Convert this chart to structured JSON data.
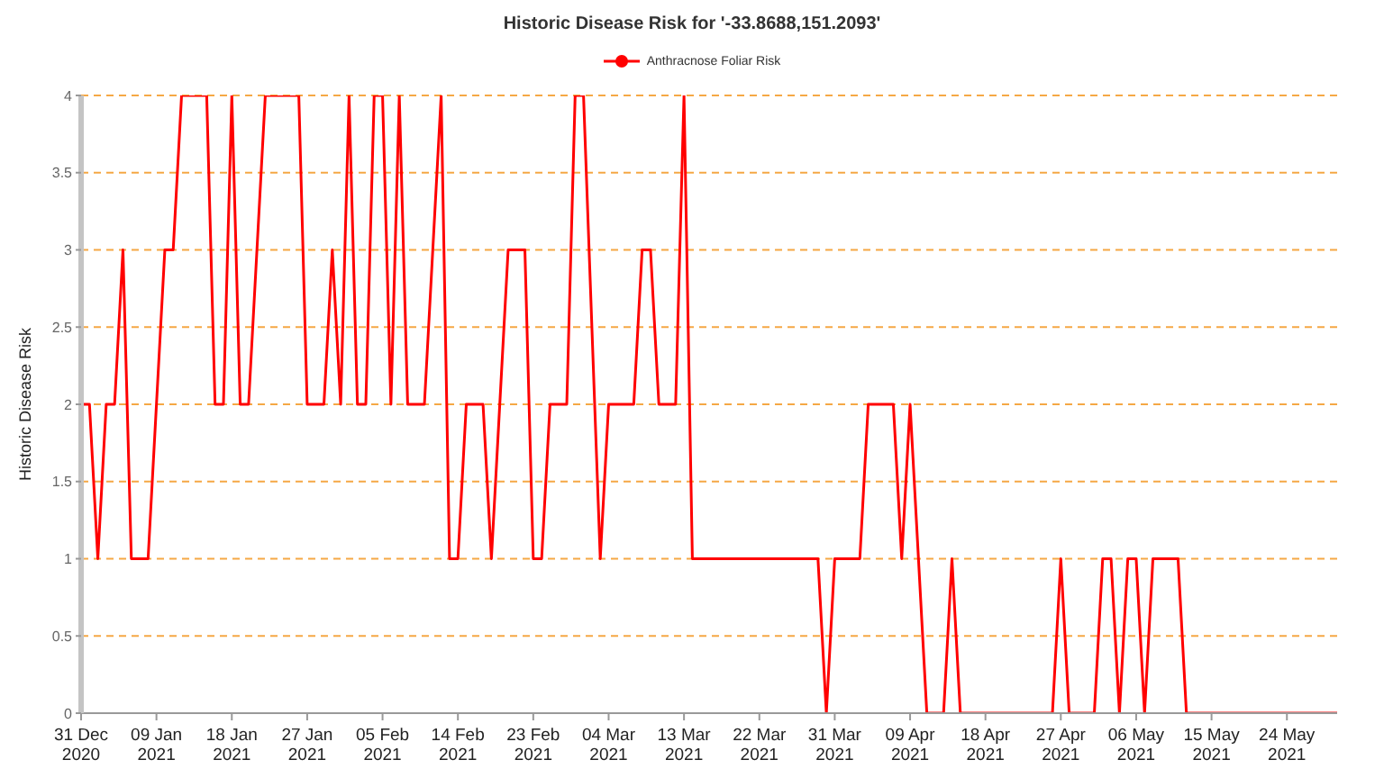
{
  "chart_data": {
    "type": "line",
    "title": "Historic Disease Risk for '-33.8688,151.2093'",
    "ylabel": "Historic Disease Risk",
    "x": [
      "2020-12-31",
      "2021-01-01",
      "2021-01-02",
      "2021-01-03",
      "2021-01-04",
      "2021-01-05",
      "2021-01-06",
      "2021-01-08",
      "2021-01-10",
      "2021-01-11",
      "2021-01-12",
      "2021-01-15",
      "2021-01-16",
      "2021-01-17",
      "2021-01-18",
      "2021-01-19",
      "2021-01-20",
      "2021-01-22",
      "2021-01-26",
      "2021-01-27",
      "2021-01-29",
      "2021-01-30",
      "2021-01-31",
      "2021-02-01",
      "2021-02-02",
      "2021-02-03",
      "2021-02-04",
      "2021-02-05",
      "2021-02-06",
      "2021-02-07",
      "2021-02-08",
      "2021-02-10",
      "2021-02-12",
      "2021-02-13",
      "2021-02-14",
      "2021-02-15",
      "2021-02-17",
      "2021-02-18",
      "2021-02-20",
      "2021-02-22",
      "2021-02-23",
      "2021-02-24",
      "2021-02-25",
      "2021-02-27",
      "2021-02-28",
      "2021-03-01",
      "2021-03-03",
      "2021-03-04",
      "2021-03-07",
      "2021-03-08",
      "2021-03-09",
      "2021-03-10",
      "2021-03-12",
      "2021-03-13",
      "2021-03-14",
      "2021-03-29",
      "2021-03-30",
      "2021-03-31",
      "2021-04-03",
      "2021-04-04",
      "2021-04-07",
      "2021-04-08",
      "2021-04-09",
      "2021-04-11",
      "2021-04-13",
      "2021-04-14",
      "2021-04-15",
      "2021-04-26",
      "2021-04-27",
      "2021-04-28",
      "2021-05-01",
      "2021-05-02",
      "2021-05-03",
      "2021-05-04",
      "2021-05-05",
      "2021-05-06",
      "2021-05-07",
      "2021-05-08",
      "2021-05-11",
      "2021-05-12",
      "2021-05-30"
    ],
    "series": [
      {
        "name": "Anthracnose Foliar Risk",
        "color": "#ff0000",
        "values": [
          2,
          2,
          1,
          2,
          2,
          3,
          1,
          1,
          3,
          3,
          4,
          4,
          2,
          2,
          4,
          2,
          2,
          4,
          4,
          2,
          2,
          3,
          2,
          4,
          2,
          2,
          4,
          4,
          2,
          4,
          2,
          2,
          4,
          1,
          1,
          2,
          2,
          1,
          3,
          3,
          1,
          1,
          2,
          2,
          4,
          4,
          1,
          2,
          2,
          3,
          3,
          2,
          2,
          4,
          1,
          1,
          0,
          1,
          1,
          2,
          2,
          1,
          2,
          0,
          0,
          1,
          0,
          0,
          1,
          0,
          0,
          1,
          1,
          0,
          1,
          1,
          0,
          1,
          1,
          0,
          0
        ]
      }
    ],
    "xlim": [
      "2020-12-31",
      "2021-05-30"
    ],
    "xticks": [
      {
        "value": "2020-12-31",
        "label": "31 Dec 2020"
      },
      {
        "value": "2021-01-09",
        "label": "09 Jan 2021"
      },
      {
        "value": "2021-01-18",
        "label": "18 Jan 2021"
      },
      {
        "value": "2021-01-27",
        "label": "27 Jan 2021"
      },
      {
        "value": "2021-02-05",
        "label": "05 Feb 2021"
      },
      {
        "value": "2021-02-14",
        "label": "14 Feb 2021"
      },
      {
        "value": "2021-02-23",
        "label": "23 Feb 2021"
      },
      {
        "value": "2021-03-04",
        "label": "04 Mar 2021"
      },
      {
        "value": "2021-03-13",
        "label": "13 Mar 2021"
      },
      {
        "value": "2021-03-22",
        "label": "22 Mar 2021"
      },
      {
        "value": "2021-03-31",
        "label": "31 Mar 2021"
      },
      {
        "value": "2021-04-09",
        "label": "09 Apr 2021"
      },
      {
        "value": "2021-04-18",
        "label": "18 Apr 2021"
      },
      {
        "value": "2021-04-27",
        "label": "27 Apr 2021"
      },
      {
        "value": "2021-05-06",
        "label": "06 May 2021"
      },
      {
        "value": "2021-05-15",
        "label": "15 May 2021"
      },
      {
        "value": "2021-05-24",
        "label": "24 May 2021"
      }
    ],
    "ylim": [
      0,
      4
    ],
    "yticks": [
      0,
      0.5,
      1,
      1.5,
      2,
      2.5,
      3,
      3.5,
      4
    ],
    "grid": "y",
    "legend": "top",
    "line_style": "solid"
  }
}
